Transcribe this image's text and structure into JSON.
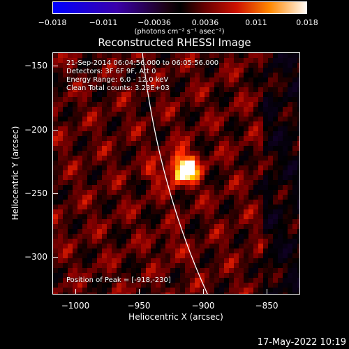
{
  "colorbar": {
    "ticks": [
      "−0.018",
      "−0.011",
      "−0.0036",
      "0.0036",
      "0.011",
      "0.018"
    ],
    "units": "(photons cm⁻² s⁻¹ asec⁻²)"
  },
  "title": "Reconstructed RHESSI Image",
  "annotations": {
    "time": "21-Sep-2014 06:04:56.000 to 06:05:56.000",
    "detectors": "Detectors: 3F 6F 9F, Att 0",
    "energy": "Energy Range: 6.0 - 12.0 keV",
    "clean": "Clean     Total counts: 3.23E+03",
    "peak": "Position of Peak = [-918,-230]"
  },
  "axes": {
    "xlabel": "Heliocentric X (arcsec)",
    "ylabel": "Heliocentric Y (arcsec)",
    "xticks": [
      "−1000",
      "−950",
      "−900",
      "−850"
    ],
    "yticks": [
      "−150",
      "−200",
      "−250",
      "−300"
    ]
  },
  "footer": {
    "date": "17-May-2022 10:19"
  },
  "colors": {
    "background": "#000000",
    "text": "#ffffff",
    "limb_line": "#ffffff"
  }
}
